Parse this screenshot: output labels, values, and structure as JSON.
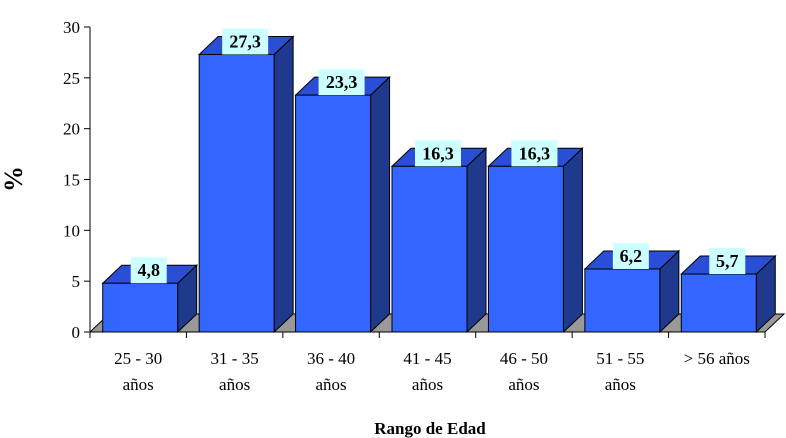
{
  "chart_data": {
    "type": "bar",
    "categories": [
      [
        "25 - 30",
        "años"
      ],
      [
        "31 - 35",
        "años"
      ],
      [
        "36 - 40",
        "años"
      ],
      [
        "41 - 45",
        "años"
      ],
      [
        "46 - 50",
        "años"
      ],
      [
        "51 - 55",
        "años"
      ],
      [
        "> 56 años"
      ]
    ],
    "values": [
      4.8,
      27.3,
      23.3,
      16.3,
      16.3,
      6.2,
      5.7
    ],
    "data_labels": [
      "4,8",
      "27,3",
      "23,3",
      "16,3",
      "16,3",
      "6,2",
      "5,7"
    ],
    "xlabel": "Rango de Edad",
    "ylabel": "%",
    "ylim": [
      0,
      30
    ],
    "yticks": [
      0,
      5,
      10,
      15,
      20,
      25,
      30
    ],
    "grid": false,
    "style": "3d-bar",
    "colors": {
      "bar_front": "#3366ff",
      "bar_top": "#2a4fd6",
      "bar_side": "#1f3a8c",
      "floor": "#999999",
      "label_bg": "#ccffff"
    }
  }
}
